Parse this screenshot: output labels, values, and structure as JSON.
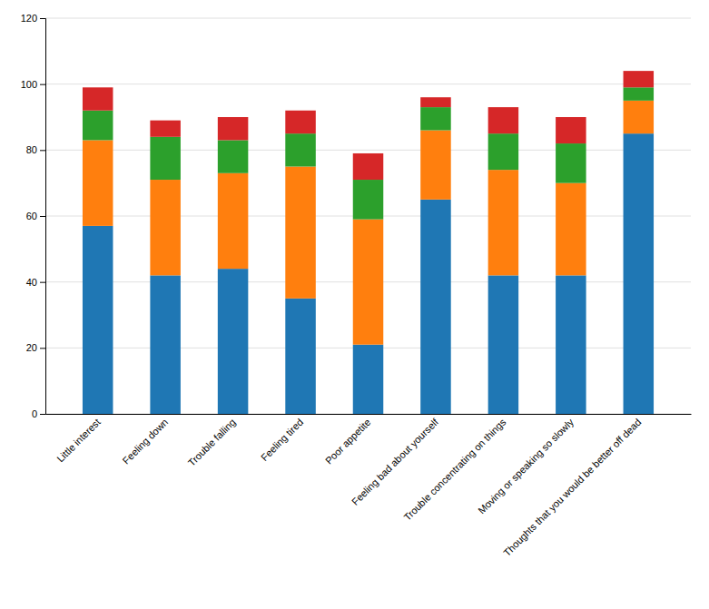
{
  "chart_data": {
    "type": "bar",
    "stacked": true,
    "grid": true,
    "categories": [
      "Little interest",
      "Feeling down",
      "Trouble falling",
      "Feeling tired",
      "Poor appetite",
      "Feeling bad about yourself",
      "Trouble concentrating on things",
      "Moving or speaking so slowly",
      "Thoughts that you would be better off dead"
    ],
    "series": [
      {
        "values": [
          57,
          42,
          44,
          35,
          21,
          65,
          42,
          42,
          85
        ]
      },
      {
        "values": [
          26,
          29,
          29,
          40,
          38,
          21,
          32,
          28,
          10
        ]
      },
      {
        "values": [
          9,
          13,
          10,
          10,
          12,
          7,
          11,
          12,
          4
        ]
      },
      {
        "values": [
          7,
          5,
          7,
          7,
          8,
          3,
          8,
          8,
          5
        ]
      }
    ],
    "ylim": [
      0,
      120
    ],
    "yticks": [
      0,
      20,
      40,
      60,
      80,
      100,
      120
    ]
  }
}
